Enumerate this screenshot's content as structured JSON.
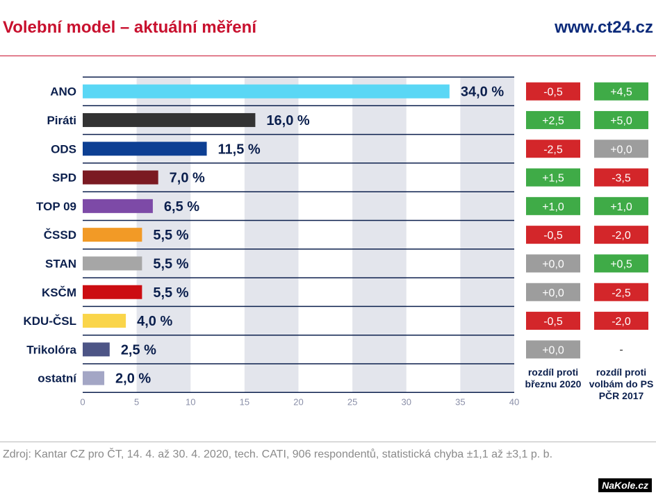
{
  "header": {
    "title": "Volební model – aktuální měření",
    "site": "www.ct24.cz"
  },
  "chart_data": {
    "type": "bar",
    "orientation": "horizontal",
    "title": "Volební model – aktuální měření",
    "xlim": [
      0,
      40
    ],
    "xticks": [
      "0",
      "5",
      "10",
      "15",
      "20",
      "25",
      "30",
      "35",
      "40"
    ],
    "categories": [
      "ANO",
      "Piráti",
      "ODS",
      "SPD",
      "TOP 09",
      "ČSSD",
      "STAN",
      "KSČM",
      "KDU-ČSL",
      "Trikolóra",
      "ostatní"
    ],
    "values": [
      34.0,
      16.0,
      11.5,
      7.0,
      6.5,
      5.5,
      5.5,
      5.5,
      4.0,
      2.5,
      2.0
    ],
    "value_labels": [
      "34,0 %",
      "16,0 %",
      "11,5 %",
      "7,0 %",
      "6,5 %",
      "5,5 %",
      "5,5 %",
      "5,5 %",
      "4,0 %",
      "2,5 %",
      "2,0 %"
    ],
    "colors": [
      "#5ad7f5",
      "#333333",
      "#0d3f93",
      "#7b1a22",
      "#7d4aa7",
      "#f29a26",
      "#a6a6a6",
      "#cc0d12",
      "#fad54a",
      "#4d5586",
      "#a3a6c5"
    ],
    "delta_columns": [
      {
        "header": "rozdíl proti březnu 2020",
        "values": [
          "-0,5",
          "+2,5",
          "-2,5",
          "+1,5",
          "+1,0",
          "-0,5",
          "+0,0",
          "+0,0",
          "-0,5",
          "+0,0",
          null
        ]
      },
      {
        "header": "rozdíl proti volbám do PS PČR 2017",
        "values": [
          "+4,5",
          "+5,0",
          "+0,0",
          "-3,5",
          "+1,0",
          "-2,0",
          "+0,5",
          "-2,5",
          "-2,0",
          "-",
          null
        ]
      }
    ],
    "delta_colors": {
      "positive": "#3fab47",
      "negative": "#d3262a",
      "zero": "#9d9d9d"
    }
  },
  "source": "Zdroj: Kantar CZ pro ČT, 14. 4. až 30. 4. 2020, tech. CATI, 906 respondentů, statistická chyba ±1,1 až ±3,1 p. b.",
  "watermark": "NaKole.cz"
}
